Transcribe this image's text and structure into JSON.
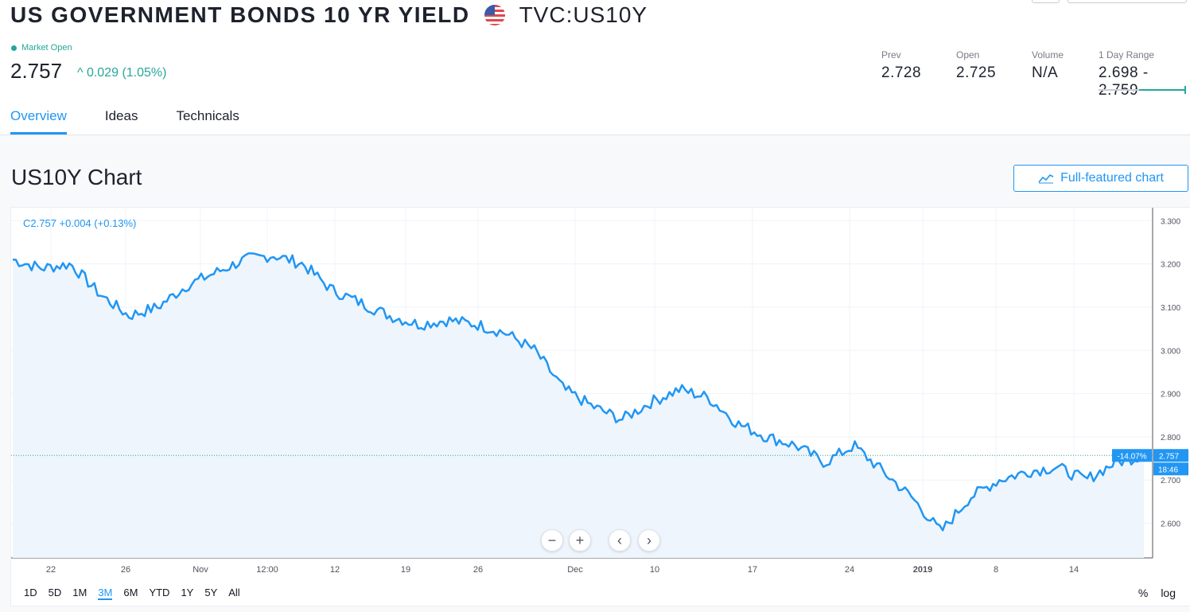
{
  "header": {
    "title": "US GOVERNMENT BONDS 10 YR YIELD",
    "ticker": "TVC:US10Y",
    "market_status": "Market Open",
    "price": "2.757",
    "change": "^ 0.029 (1.05%)"
  },
  "stats": {
    "prev_label": "Prev",
    "prev_value": "2.728",
    "open_label": "Open",
    "open_value": "2.725",
    "volume_label": "Volume",
    "volume_value": "N/A",
    "range_label": "1 Day Range",
    "range_value": "2.698 - 2.759",
    "range_position": 0.5
  },
  "tabs": [
    {
      "label": "Overview",
      "active": true
    },
    {
      "label": "Ideas",
      "active": false
    },
    {
      "label": "Technicals",
      "active": false
    }
  ],
  "chart_section": {
    "title": "US10Y Chart",
    "full_chart_button": "Full-featured chart",
    "legend": "C2.757   +0.004 (+0.13%)",
    "last_price_label": "2.757",
    "change_pct_label": "-14.07%",
    "countdown_label": "18:46"
  },
  "periods": [
    "1D",
    "5D",
    "1M",
    "3M",
    "6M",
    "YTD",
    "1Y",
    "5Y",
    "All"
  ],
  "active_period": "3M",
  "scale_options": [
    "%",
    "log"
  ],
  "colors": {
    "accent": "#2196f3",
    "positive": "#26a69a",
    "line": "#2196f3",
    "area": "#eef5fd"
  },
  "chart_data": {
    "type": "area",
    "x": [
      "Oct 19",
      "Oct 22",
      "Oct 24",
      "Oct 26",
      "Oct 29",
      "Nov 1",
      "Nov 5",
      "Nov 7",
      "Nov 9",
      "Nov 12",
      "Nov 14",
      "Nov 16",
      "Nov 19",
      "Nov 21",
      "Nov 23",
      "Nov 26",
      "Nov 28",
      "Nov 30",
      "Dec 3",
      "Dec 5",
      "Dec 7",
      "Dec 10",
      "Dec 12",
      "Dec 14",
      "Dec 17",
      "Dec 19",
      "Dec 21",
      "Dec 24",
      "Dec 26",
      "Dec 28",
      "Dec 31",
      "Jan 2",
      "Jan 3",
      "Jan 4",
      "Jan 7",
      "Jan 9",
      "Jan 11",
      "Jan 14",
      "Jan 16",
      "Jan 18"
    ],
    "y": [
      3.21,
      3.19,
      3.2,
      3.13,
      3.08,
      3.1,
      3.15,
      3.18,
      3.21,
      3.22,
      3.2,
      3.14,
      3.11,
      3.08,
      3.06,
      3.07,
      3.06,
      3.04,
      3.0,
      2.91,
      2.87,
      2.84,
      2.88,
      2.91,
      2.89,
      2.83,
      2.8,
      2.78,
      2.74,
      2.78,
      2.72,
      2.66,
      2.58,
      2.66,
      2.7,
      2.72,
      2.73,
      2.7,
      2.74,
      2.757
    ],
    "x_ticks": [
      "22",
      "26",
      "Nov",
      "12:00",
      "12",
      "19",
      "26",
      "Dec",
      "10",
      "17",
      "24",
      "2019",
      "8",
      "14"
    ],
    "y_ticks": [
      "3.300",
      "3.200",
      "3.100",
      "3.000",
      "2.900",
      "2.800",
      "2.700",
      "2.600"
    ],
    "ylim": [
      2.52,
      3.33
    ],
    "grid": true,
    "last_value": 2.757
  }
}
